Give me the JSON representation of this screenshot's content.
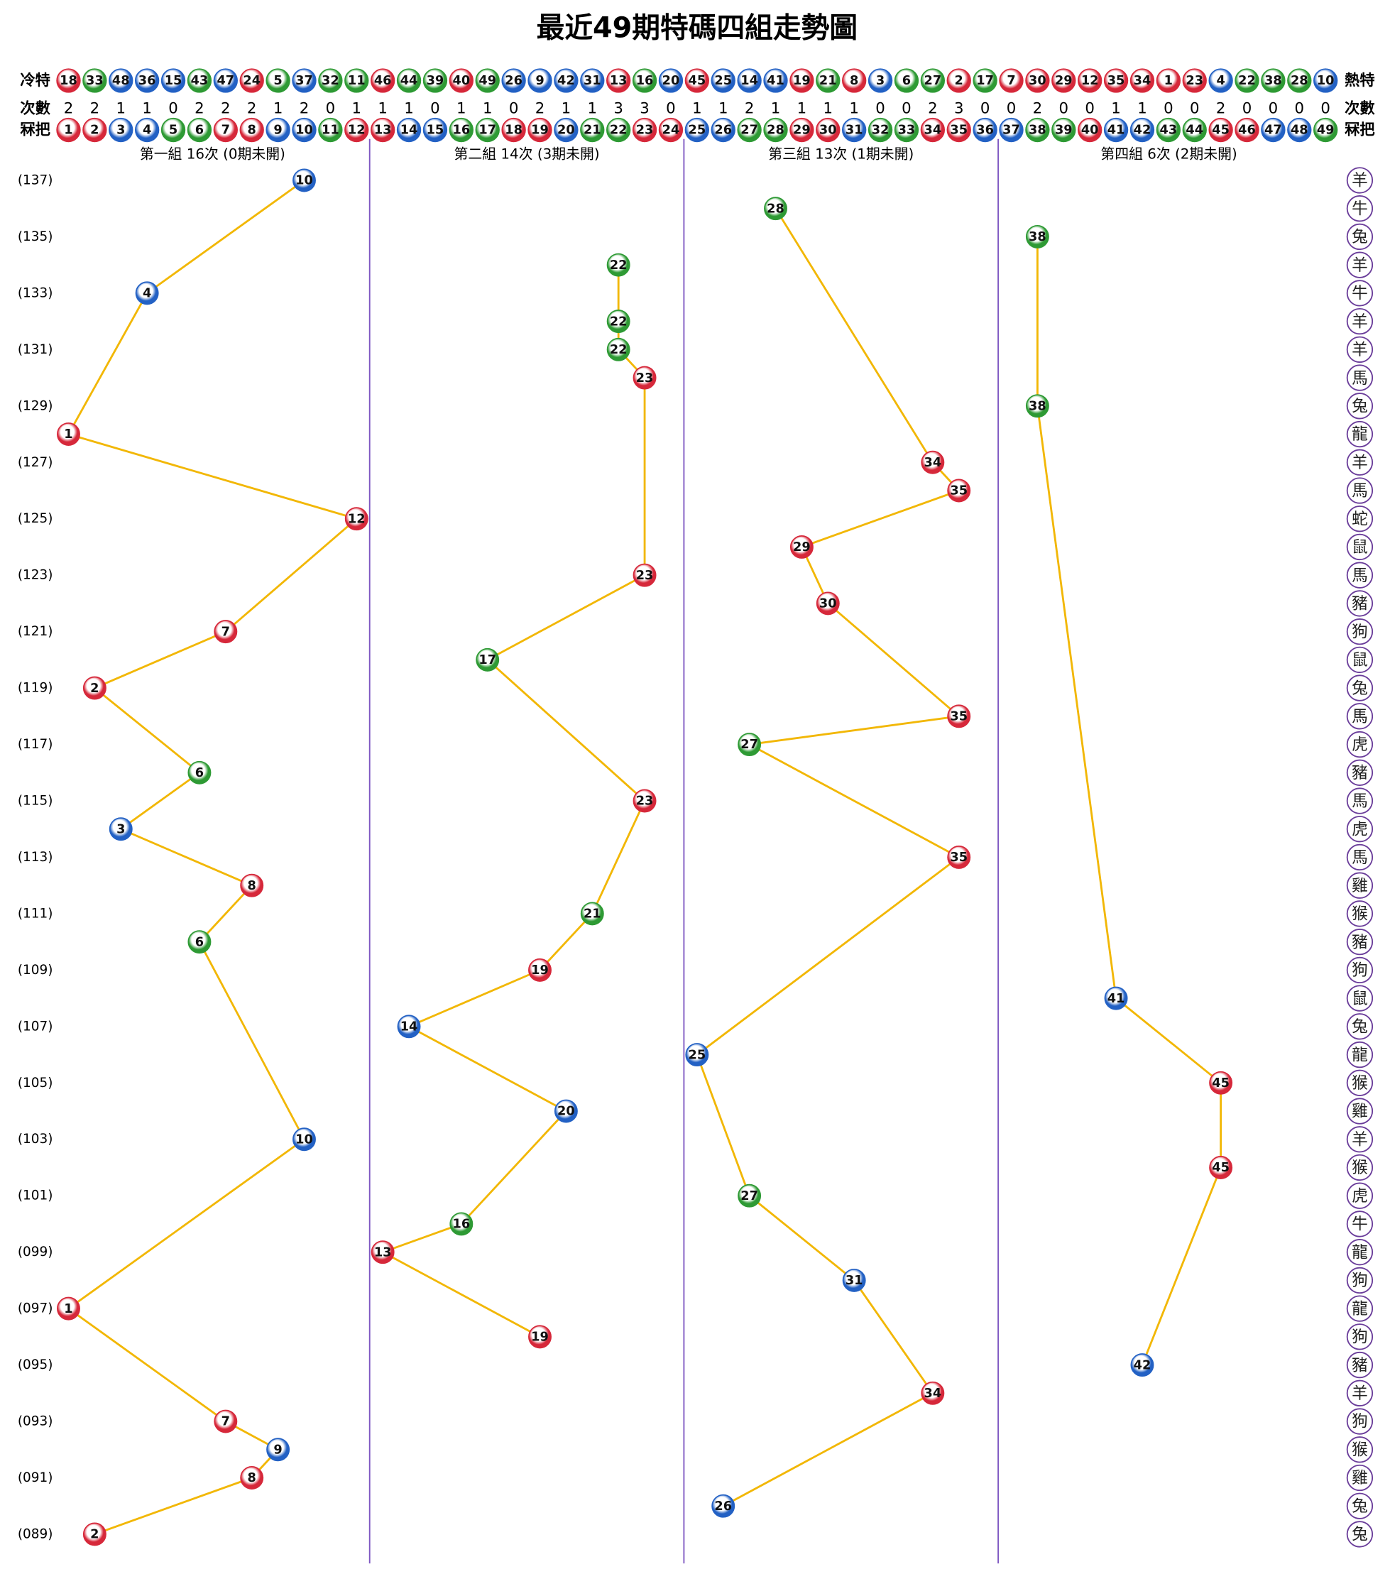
{
  "title": "最近49期特碼四組走勢圖",
  "header": {
    "cold_label": "冷特",
    "hot_label": "熱特",
    "cold_hot": [
      18,
      33,
      48,
      36,
      15,
      43,
      47,
      24,
      5,
      37,
      32,
      11,
      46,
      44,
      39,
      40,
      49,
      26,
      9,
      42,
      31,
      13,
      16,
      20,
      45,
      25,
      14,
      41,
      19,
      21,
      8,
      3,
      6,
      27,
      2,
      17,
      7,
      30,
      29,
      12,
      35,
      34,
      1,
      23,
      4,
      22,
      38,
      28,
      10
    ],
    "count_label": "次數",
    "counts": [
      2,
      2,
      1,
      1,
      0,
      2,
      2,
      2,
      1,
      2,
      0,
      1,
      1,
      1,
      0,
      1,
      1,
      0,
      2,
      1,
      1,
      3,
      3,
      0,
      1,
      1,
      2,
      1,
      1,
      1,
      1,
      0,
      0,
      2,
      3,
      0,
      0,
      2,
      0,
      0,
      1,
      1,
      0,
      0,
      2,
      0,
      0,
      0,
      0
    ],
    "number_label": "冧把",
    "numbers": [
      1,
      2,
      3,
      4,
      5,
      6,
      7,
      8,
      9,
      10,
      11,
      12,
      13,
      14,
      15,
      16,
      17,
      18,
      19,
      20,
      21,
      22,
      23,
      24,
      25,
      26,
      27,
      28,
      29,
      30,
      31,
      32,
      33,
      34,
      35,
      36,
      37,
      38,
      39,
      40,
      41,
      42,
      43,
      44,
      45,
      46,
      47,
      48,
      49
    ]
  },
  "groups": [
    "第一組 16次 (0期未開)",
    "第二組 14次 (3期未開)",
    "第三組 13次 (1期未開)",
    "第四組 6次 (2期未開)"
  ],
  "periods": [
    "(137)",
    null,
    "(135)",
    null,
    "(133)",
    null,
    "(131)",
    null,
    "(129)",
    null,
    "(127)",
    null,
    "(125)",
    null,
    "(123)",
    null,
    "(121)",
    null,
    "(119)",
    null,
    "(117)",
    null,
    "(115)",
    null,
    "(113)",
    null,
    "(111)",
    null,
    "(109)",
    null,
    "(107)",
    null,
    "(105)",
    null,
    "(103)",
    null,
    "(101)",
    null,
    "(099)",
    null,
    "(097)",
    null,
    "(095)",
    null,
    "(093)",
    null,
    "(091)",
    null,
    "(089)"
  ],
  "draws": [
    10,
    28,
    38,
    22,
    4,
    22,
    22,
    23,
    38,
    1,
    34,
    35,
    12,
    29,
    23,
    30,
    7,
    17,
    2,
    35,
    27,
    6,
    23,
    3,
    35,
    8,
    21,
    6,
    19,
    41,
    14,
    25,
    45,
    20,
    10,
    45,
    27,
    16,
    13,
    31,
    1,
    19,
    42,
    34,
    7,
    9,
    8,
    26,
    2
  ],
  "zodiac": [
    "羊",
    "牛",
    "兔",
    "羊",
    "牛",
    "羊",
    "羊",
    "馬",
    "兔",
    "龍",
    "羊",
    "馬",
    "蛇",
    "鼠",
    "馬",
    "豬",
    "狗",
    "鼠",
    "兔",
    "馬",
    "虎",
    "豬",
    "馬",
    "虎",
    "馬",
    "雞",
    "猴",
    "豬",
    "狗",
    "鼠",
    "兔",
    "龍",
    "猴",
    "雞",
    "羊",
    "猴",
    "虎",
    "牛",
    "龍",
    "狗",
    "龍",
    "狗",
    "豬",
    "羊",
    "狗",
    "猴",
    "雞",
    "兔",
    "兔"
  ],
  "ball_colors": {
    "red": {
      "color": "#d6283a",
      "numbers": [
        1,
        2,
        7,
        8,
        12,
        13,
        18,
        19,
        23,
        24,
        29,
        30,
        34,
        35,
        40,
        45,
        46
      ]
    },
    "blue": {
      "color": "#2361c4",
      "numbers": [
        3,
        4,
        9,
        10,
        14,
        15,
        20,
        25,
        26,
        31,
        36,
        37,
        41,
        42,
        47,
        48
      ]
    },
    "green": {
      "color": "#2e9a34",
      "numbers": [
        5,
        6,
        11,
        16,
        17,
        21,
        22,
        27,
        28,
        32,
        33,
        38,
        39,
        43,
        44,
        49
      ]
    }
  },
  "line_color": "#f2b705",
  "divider_color": "#7e57c2",
  "zodiac_color": "#6a3d9a"
}
